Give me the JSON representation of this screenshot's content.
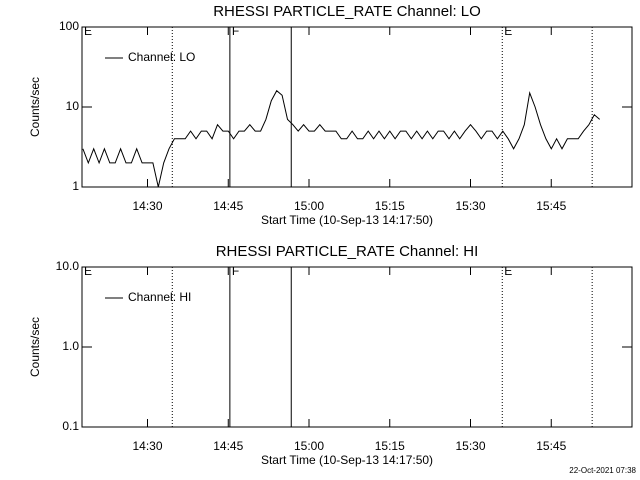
{
  "chart_data": [
    {
      "type": "line",
      "title": "RHESSI PARTICLE_RATE Channel: LO",
      "xlabel": "Start Time (10-Sep-13 14:17:50)",
      "ylabel": "Counts/sec",
      "log_y": true,
      "grid": false,
      "legend": "upper left",
      "color": "#000000",
      "xlim": [
        857.83,
        960
      ],
      "ylim": [
        1,
        100
      ],
      "xticks": [
        {
          "value": 870,
          "label": "14:30"
        },
        {
          "value": 885,
          "label": "14:45"
        },
        {
          "value": 900,
          "label": "15:00"
        },
        {
          "value": 915,
          "label": "15:15"
        },
        {
          "value": 930,
          "label": "15:30"
        },
        {
          "value": 945,
          "label": "15:45"
        }
      ],
      "yticks": [
        1,
        10,
        100
      ],
      "vlines": [
        {
          "x": 874.6,
          "style": "dotted"
        },
        {
          "x": 885.3,
          "style": "solid"
        },
        {
          "x": 896.7,
          "style": "solid"
        },
        {
          "x": 935.9,
          "style": "dotted"
        },
        {
          "x": 952.6,
          "style": "dotted"
        }
      ],
      "annotations": [
        {
          "text": "E",
          "x": 857.83
        },
        {
          "text": "F",
          "x": 885.3
        },
        {
          "text": "E",
          "x": 935.9
        }
      ],
      "x": [
        858,
        859,
        860,
        861,
        862,
        863,
        864,
        865,
        866,
        867,
        868,
        869,
        870,
        871,
        872,
        873,
        874,
        875,
        876,
        877,
        878,
        879,
        880,
        881,
        882,
        883,
        884,
        885,
        886,
        887,
        888,
        889,
        890,
        891,
        892,
        893,
        894,
        895,
        896,
        897,
        898,
        899,
        900,
        901,
        902,
        903,
        904,
        905,
        906,
        907,
        908,
        909,
        910,
        911,
        912,
        913,
        914,
        915,
        916,
        917,
        918,
        919,
        920,
        921,
        922,
        923,
        924,
        925,
        926,
        927,
        928,
        929,
        930,
        931,
        932,
        933,
        934,
        935,
        936,
        937,
        938,
        939,
        940,
        941,
        942,
        943,
        944,
        945,
        946,
        947,
        948,
        949,
        950,
        951,
        952,
        953,
        954
      ],
      "series": [
        {
          "name": "Channel: LO",
          "values": [
            3,
            2,
            3,
            2,
            3,
            2,
            2,
            3,
            2,
            2,
            3,
            2,
            2,
            2,
            1,
            2,
            3,
            4,
            4,
            4,
            5,
            4,
            5,
            5,
            4,
            6,
            5,
            5,
            4,
            5,
            5,
            6,
            5,
            5,
            7,
            12,
            16,
            14,
            7,
            6,
            5,
            6,
            5,
            5,
            6,
            5,
            5,
            5,
            4,
            4,
            5,
            4,
            4,
            5,
            4,
            5,
            4,
            5,
            4,
            5,
            5,
            4,
            5,
            4,
            5,
            4,
            5,
            5,
            4,
            5,
            4,
            5,
            6,
            5,
            4,
            5,
            5,
            4,
            5,
            4,
            3,
            4,
            6,
            15,
            10,
            6,
            4,
            3,
            4,
            3,
            4,
            4,
            4,
            5,
            6,
            8,
            7
          ]
        }
      ]
    },
    {
      "type": "line",
      "title": "RHESSI PARTICLE_RATE Channel: HI",
      "xlabel": "Start Time (10-Sep-13 14:17:50)",
      "ylabel": "Counts/sec",
      "log_y": true,
      "grid": false,
      "legend": "upper left",
      "color": "#000000",
      "xlim": [
        857.83,
        960
      ],
      "ylim": [
        0.1,
        10
      ],
      "xticks": [
        {
          "value": 870,
          "label": "14:30"
        },
        {
          "value": 885,
          "label": "14:45"
        },
        {
          "value": 900,
          "label": "15:00"
        },
        {
          "value": 915,
          "label": "15:15"
        },
        {
          "value": 930,
          "label": "15:30"
        },
        {
          "value": 945,
          "label": "15:45"
        }
      ],
      "yticks": [
        0.1,
        {
          "value": 1,
          "label": "1.0"
        },
        {
          "value": 10,
          "label": "10.0"
        }
      ],
      "vlines": [
        {
          "x": 874.6,
          "style": "dotted"
        },
        {
          "x": 885.3,
          "style": "solid"
        },
        {
          "x": 896.7,
          "style": "solid"
        },
        {
          "x": 935.9,
          "style": "dotted"
        },
        {
          "x": 952.6,
          "style": "dotted"
        }
      ],
      "annotations": [
        {
          "text": "E",
          "x": 857.83
        },
        {
          "text": "F",
          "x": 885.3
        },
        {
          "text": "E",
          "x": 935.9
        }
      ],
      "x": [],
      "series": [
        {
          "name": "Channel: HI",
          "values": []
        }
      ]
    }
  ],
  "footer": "22-Oct-2021 07:38"
}
